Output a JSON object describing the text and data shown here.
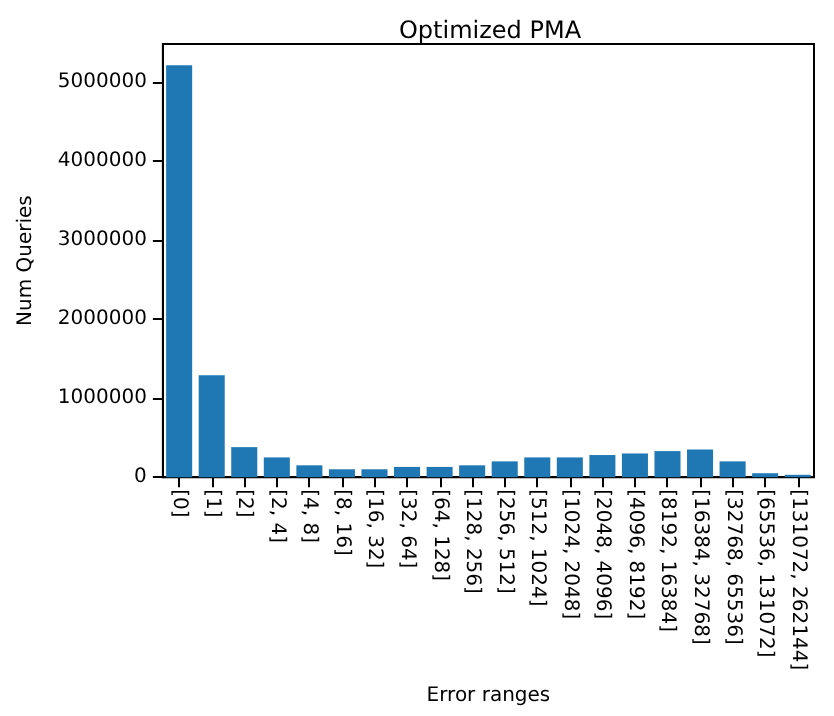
{
  "chart_data": {
    "type": "bar",
    "title": "Optimized PMA",
    "xlabel": "Error ranges",
    "ylabel": "Num Queries",
    "categories": [
      "[0]",
      "[1]",
      "[2]",
      "[2, 4]",
      "[4, 8]",
      "[8, 16]",
      "[16, 32]",
      "[32, 64]",
      "[64, 128]",
      "[128, 256]",
      "[256, 512]",
      "[512, 1024]",
      "[1024, 2048]",
      "[2048, 4096]",
      "[4096, 8192]",
      "[8192, 16384]",
      "[16384, 32768]",
      "[32768, 65536]",
      "[65536, 131072]",
      "[131072, 262144]"
    ],
    "values": [
      5210000,
      1290000,
      380000,
      250000,
      150000,
      100000,
      100000,
      130000,
      130000,
      150000,
      200000,
      250000,
      250000,
      280000,
      300000,
      330000,
      350000,
      200000,
      50000,
      30000
    ],
    "color": "#1f77b4",
    "ylim": [
      0,
      5480000
    ],
    "yticks": [
      0,
      1000000,
      2000000,
      3000000,
      4000000,
      5000000
    ],
    "grid": false
  }
}
